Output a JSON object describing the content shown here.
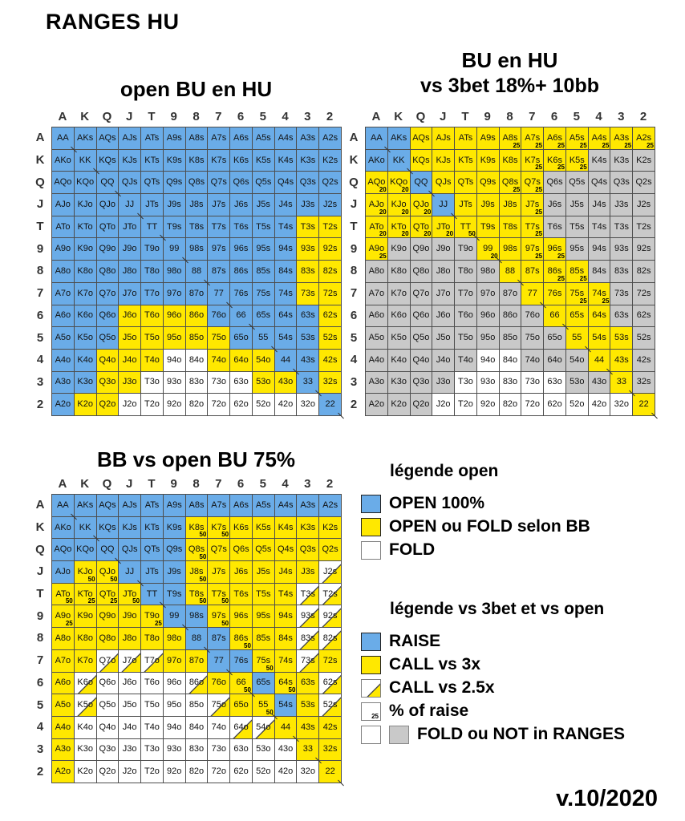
{
  "page": {
    "title": "RANGES HU",
    "version": "v.10/2020"
  },
  "colors": {
    "open_blue": "#6aace8",
    "call_yellow": "#ffe800",
    "fold_white": "#ffffff",
    "not_in_range_gray": "#c9c9c9",
    "border": "#4d4d4d"
  },
  "chart_data": {
    "type": "heatmap",
    "ranks": [
      "A",
      "K",
      "Q",
      "J",
      "T",
      "9",
      "8",
      "7",
      "6",
      "5",
      "4",
      "3",
      "2"
    ],
    "cell_encoding": "label:state[:percent] — states: b=blue OPEN/RAISE, y=yellow OPEN-ou-FOLD/CALL, w=white FOLD, g=gray NOT in RANGES, h=white+yellow diagonal CALL vs 2.5x",
    "grids": [
      {
        "id": "open-bu",
        "title": "open BU en HU",
        "subtitle": "",
        "rows": [
          [
            "AA:b",
            "AKs:b",
            "AQs:b",
            "AJs:b",
            "ATs:b",
            "A9s:b",
            "A8s:b",
            "A7s:b",
            "A6s:b",
            "A5s:b",
            "A4s:b",
            "A3s:b",
            "A2s:b"
          ],
          [
            "AKo:b",
            "KK:b",
            "KQs:b",
            "KJs:b",
            "KTs:b",
            "K9s:b",
            "K8s:b",
            "K7s:b",
            "K6s:b",
            "K5s:b",
            "K4s:b",
            "K3s:b",
            "K2s:b"
          ],
          [
            "AQo:b",
            "KQo:b",
            "QQ:b",
            "QJs:b",
            "QTs:b",
            "Q9s:b",
            "Q8s:b",
            "Q7s:b",
            "Q6s:b",
            "Q5s:b",
            "Q4s:b",
            "Q3s:b",
            "Q2s:b"
          ],
          [
            "AJo:b",
            "KJo:b",
            "QJo:b",
            "JJ:b",
            "JTs:b",
            "J9s:b",
            "J8s:b",
            "J7s:b",
            "J6s:b",
            "J5s:b",
            "J4s:b",
            "J3s:b",
            "J2s:b"
          ],
          [
            "ATo:b",
            "KTo:b",
            "QTo:b",
            "JTo:b",
            "TT:b",
            "T9s:b",
            "T8s:b",
            "T7s:b",
            "T6s:b",
            "T5s:b",
            "T4s:b",
            "T3s:y",
            "T2s:y"
          ],
          [
            "A9o:b",
            "K9o:b",
            "Q9o:b",
            "J9o:b",
            "T9o:b",
            "99:b",
            "98s:b",
            "97s:b",
            "96s:b",
            "95s:b",
            "94s:b",
            "93s:y",
            "92s:y"
          ],
          [
            "A8o:b",
            "K8o:b",
            "Q8o:b",
            "J8o:b",
            "T8o:b",
            "98o:b",
            "88:b",
            "87s:b",
            "86s:b",
            "85s:b",
            "84s:b",
            "83s:y",
            "82s:y"
          ],
          [
            "A7o:b",
            "K7o:b",
            "Q7o:b",
            "J7o:b",
            "T7o:b",
            "97o:b",
            "87o:b",
            "77:b",
            "76s:b",
            "75s:b",
            "74s:b",
            "73s:y",
            "72s:y"
          ],
          [
            "A6o:b",
            "K6o:b",
            "Q6o:b",
            "J6o:y",
            "T6o:y",
            "96o:y",
            "86o:y",
            "76o:b",
            "66:b",
            "65s:b",
            "64s:b",
            "63s:b",
            "62s:y"
          ],
          [
            "A5o:b",
            "K5o:b",
            "Q5o:b",
            "J5o:y",
            "T5o:y",
            "95o:y",
            "85o:y",
            "75o:y",
            "65o:b",
            "55:b",
            "54s:b",
            "53s:b",
            "52s:y"
          ],
          [
            "A4o:b",
            "K4o:b",
            "Q4o:y",
            "J4o:y",
            "T4o:y",
            "94o:w",
            "84o:w",
            "74o:y",
            "64o:y",
            "54o:y",
            "44:b",
            "43s:b",
            "42s:y"
          ],
          [
            "A3o:b",
            "K3o:b",
            "Q3o:y",
            "J3o:y",
            "T3o:w",
            "93o:w",
            "83o:w",
            "73o:w",
            "63o:w",
            "53o:y",
            "43o:y",
            "33:b",
            "32s:y"
          ],
          [
            "A2o:b",
            "K2o:y",
            "Q2o:y",
            "J2o:w",
            "T2o:w",
            "92o:w",
            "82o:w",
            "72o:w",
            "62o:w",
            "52o:w",
            "42o:w",
            "32o:w",
            "22:b"
          ]
        ]
      },
      {
        "id": "bu-vs-3bet",
        "title": "BU en HU",
        "subtitle": "vs 3bet 18%+ 10bb",
        "rows": [
          [
            "AA:b",
            "AKs:b",
            "AQs:y",
            "AJs:y",
            "ATs:y",
            "A9s:y",
            "A8s:y:25",
            "A7s:y:25",
            "A6s:y:25",
            "A5s:y:25",
            "A4s:y:25",
            "A3s:y:25",
            "A2s:y:25"
          ],
          [
            "AKo:b",
            "KK:b",
            "KQs:y",
            "KJs:y",
            "KTs:y",
            "K9s:y",
            "K8s:y",
            "K7s:y:25",
            "K6s:y:25",
            "K5s:y:25",
            "K4s:g",
            "K3s:g",
            "K2s:g"
          ],
          [
            "AQo:y:20",
            "KQo:y:20",
            "QQ:b",
            "QJs:y",
            "QTs:y",
            "Q9s:y",
            "Q8s:y:25",
            "Q7s:y:25",
            "Q6s:g",
            "Q5s:g",
            "Q4s:g",
            "Q3s:g",
            "Q2s:g"
          ],
          [
            "AJo:y:20",
            "KJo:y:20",
            "QJo:y:20",
            "JJ:b",
            "JTs:y",
            "J9s:y",
            "J8s:y",
            "J7s:y:25",
            "J6s:g",
            "J5s:g",
            "J4s:g",
            "J3s:g",
            "J2s:g"
          ],
          [
            "ATo:y:20",
            "KTo:y:20",
            "QTo:y:20",
            "JTo:y:20",
            "TT:y:50",
            "T9s:y",
            "T8s:y",
            "T7s:y:25",
            "T6s:g",
            "T5s:g",
            "T4s:g",
            "T3s:g",
            "T2s:g"
          ],
          [
            "A9o:y:25",
            "K9o:g",
            "Q9o:g",
            "J9o:g",
            "T9o:g",
            "99:y:20",
            "98s:y",
            "97s:y:25",
            "96s:y:25",
            "95s:g",
            "94s:g",
            "93s:g",
            "92s:g"
          ],
          [
            "A8o:g",
            "K8o:g",
            "Q8o:g",
            "J8o:g",
            "T8o:g",
            "98o:g",
            "88:y",
            "87s:y",
            "86s:y:25",
            "85s:y:25",
            "84s:g",
            "83s:g",
            "82s:g"
          ],
          [
            "A7o:g",
            "K7o:g",
            "Q7o:g",
            "J7o:g",
            "T7o:g",
            "97o:g",
            "87o:g",
            "77:y",
            "76s:y",
            "75s:y:25",
            "74s:y:25",
            "73s:g",
            "72s:g"
          ],
          [
            "A6o:g",
            "K6o:g",
            "Q6o:g",
            "J6o:g",
            "T6o:g",
            "96o:g",
            "86o:g",
            "76o:g",
            "66:y",
            "65s:y",
            "64s:y",
            "63s:g",
            "62s:g"
          ],
          [
            "A5o:g",
            "K5o:g",
            "Q5o:g",
            "J5o:g",
            "T5o:g",
            "95o:g",
            "85o:g",
            "75o:g",
            "65o:g",
            "55:y",
            "54s:y",
            "53s:y",
            "52s:g"
          ],
          [
            "A4o:g",
            "K4o:g",
            "Q4o:g",
            "J4o:g",
            "T4o:g",
            "94o:w",
            "84o:w",
            "74o:g",
            "64o:g",
            "54o:g",
            "44:y",
            "43s:y",
            "42s:g"
          ],
          [
            "A3o:g",
            "K3o:g",
            "Q3o:g",
            "J3o:g",
            "T3o:w",
            "93o:w",
            "83o:w",
            "73o:w",
            "63o:w",
            "53o:g",
            "43o:g",
            "33:y",
            "32s:g"
          ],
          [
            "A2o:g",
            "K2o:g",
            "Q2o:g",
            "J2o:w",
            "T2o:w",
            "92o:w",
            "82o:w",
            "72o:w",
            "62o:w",
            "52o:w",
            "42o:w",
            "32o:w",
            "22:y"
          ]
        ]
      },
      {
        "id": "bb-vs-open",
        "title": "BB vs open BU 75%",
        "subtitle": "",
        "rows": [
          [
            "AA:b",
            "AKs:b",
            "AQs:b",
            "AJs:b",
            "ATs:b",
            "A9s:b",
            "A8s:b",
            "A7s:b",
            "A6s:b",
            "A5s:b",
            "A4s:b",
            "A3s:b",
            "A2s:b"
          ],
          [
            "AKo:b",
            "KK:b",
            "KQs:b",
            "KJs:b",
            "KTs:b",
            "K9s:b",
            "K8s:y:50",
            "K7s:y:50",
            "K6s:y",
            "K5s:y",
            "K4s:y",
            "K3s:y",
            "K2s:y"
          ],
          [
            "AQo:b",
            "KQo:b",
            "QQ:b",
            "QJs:b",
            "QTs:b",
            "Q9s:b",
            "Q8s:y:50",
            "Q7s:y",
            "Q6s:y",
            "Q5s:y",
            "Q4s:y",
            "Q3s:y",
            "Q2s:y"
          ],
          [
            "AJo:b",
            "KJo:y:50",
            "QJo:y:50",
            "JJ:b",
            "JTs:b",
            "J9s:b",
            "J8s:y:50",
            "J7s:y",
            "J6s:y",
            "J5s:y",
            "J4s:y",
            "J3s:y",
            "J2s:h"
          ],
          [
            "ATo:y:50",
            "KTo:y:25",
            "QTo:y:25",
            "JTo:y:50",
            "TT:b",
            "T9s:b",
            "T8s:y:50",
            "T7s:y:50",
            "T6s:y",
            "T5s:y",
            "T4s:y",
            "T3s:h",
            "T2s:h"
          ],
          [
            "A9o:y:25",
            "K9o:y",
            "Q9o:y",
            "J9o:y",
            "T9o:y:25",
            "99:b",
            "98s:b",
            "97s:y:50",
            "96s:y",
            "95s:y",
            "94s:y",
            "93s:h",
            "92s:h"
          ],
          [
            "A8o:y",
            "K8o:y",
            "Q8o:y",
            "J8o:y",
            "T8o:y",
            "98o:y",
            "88:b",
            "87s:b",
            "86s:y:50",
            "85s:y",
            "84s:y",
            "83s:h",
            "82s:h"
          ],
          [
            "A7o:y",
            "K7o:y",
            "Q7o:h",
            "J7o:h",
            "T7o:h",
            "97o:y",
            "87o:y",
            "77:b",
            "76s:b",
            "75s:y:50",
            "74s:y",
            "73s:h",
            "72s:y"
          ],
          [
            "A6o:y",
            "K6o:h",
            "Q6o:w",
            "J6o:w",
            "T6o:w",
            "96o:w",
            "86o:h",
            "76o:y",
            "66:y:50",
            "65s:b",
            "64s:y:50",
            "63s:y",
            "62s:h"
          ],
          [
            "A5o:y",
            "K5o:h",
            "Q5o:w",
            "J5o:w",
            "T5o:w",
            "95o:w",
            "85o:w",
            "75o:h",
            "65o:y",
            "55:y:50",
            "54s:b",
            "53s:y",
            "52s:h"
          ],
          [
            "A4o:y",
            "K4o:w",
            "Q4o:w",
            "J4o:w",
            "T4o:w",
            "94o:w",
            "84o:w",
            "74o:w",
            "64o:h",
            "54o:h",
            "44:y",
            "43s:y",
            "42s:y"
          ],
          [
            "A3o:y",
            "K3o:w",
            "Q3o:w",
            "J3o:w",
            "T3o:w",
            "93o:w",
            "83o:w",
            "73o:w",
            "63o:w",
            "53o:w",
            "43o:w",
            "33:y",
            "32s:y"
          ],
          [
            "A2o:y",
            "K2o:w",
            "Q2o:w",
            "J2o:w",
            "T2o:w",
            "92o:w",
            "82o:w",
            "72o:w",
            "62o:w",
            "52o:w",
            "42o:w",
            "32o:w",
            "22:y"
          ]
        ]
      }
    ]
  },
  "legend_open": {
    "title": "légende open",
    "items": [
      {
        "swatch": "open",
        "label": "OPEN 100%"
      },
      {
        "swatch": "call",
        "label": "OPEN ou FOLD selon BB"
      },
      {
        "swatch": "fold",
        "label": "FOLD"
      }
    ]
  },
  "legend_vs": {
    "title": "légende vs 3bet et vs open",
    "items": [
      {
        "swatch": "open",
        "label": "RAISE"
      },
      {
        "swatch": "call",
        "label": "CALL vs 3x"
      },
      {
        "swatch": "hatched",
        "label": "CALL vs 2.5x"
      },
      {
        "swatch": "pct",
        "label": "% of raise",
        "sub": "25"
      },
      {
        "swatch": "fold-gray",
        "label": "FOLD ou NOT in RANGES"
      }
    ]
  }
}
